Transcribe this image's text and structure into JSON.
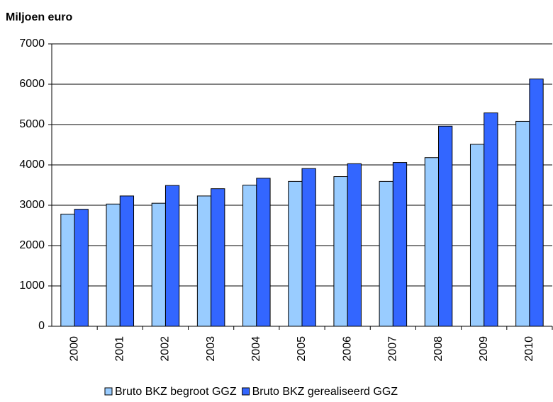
{
  "chart_data": {
    "type": "bar",
    "title": "Miljoen euro",
    "categories": [
      "2000",
      "2001",
      "2002",
      "2003",
      "2004",
      "2005",
      "2006",
      "2007",
      "2008",
      "2009",
      "2010"
    ],
    "series": [
      {
        "name": "Bruto BKZ begroot GGZ",
        "color": "#99ccff",
        "values": [
          2780,
          3030,
          3050,
          3230,
          3500,
          3590,
          3710,
          3590,
          4180,
          4510,
          5080
        ]
      },
      {
        "name": "Bruto BKZ gerealiseerd GGZ",
        "color": "#3366ff",
        "values": [
          2900,
          3230,
          3490,
          3410,
          3670,
          3910,
          4030,
          4060,
          4960,
          5290,
          6130
        ]
      }
    ],
    "ylim": [
      0,
      7000
    ],
    "yticks": [
      0,
      1000,
      2000,
      3000,
      4000,
      5000,
      6000,
      7000
    ],
    "grid": true,
    "legend": "bottom"
  }
}
